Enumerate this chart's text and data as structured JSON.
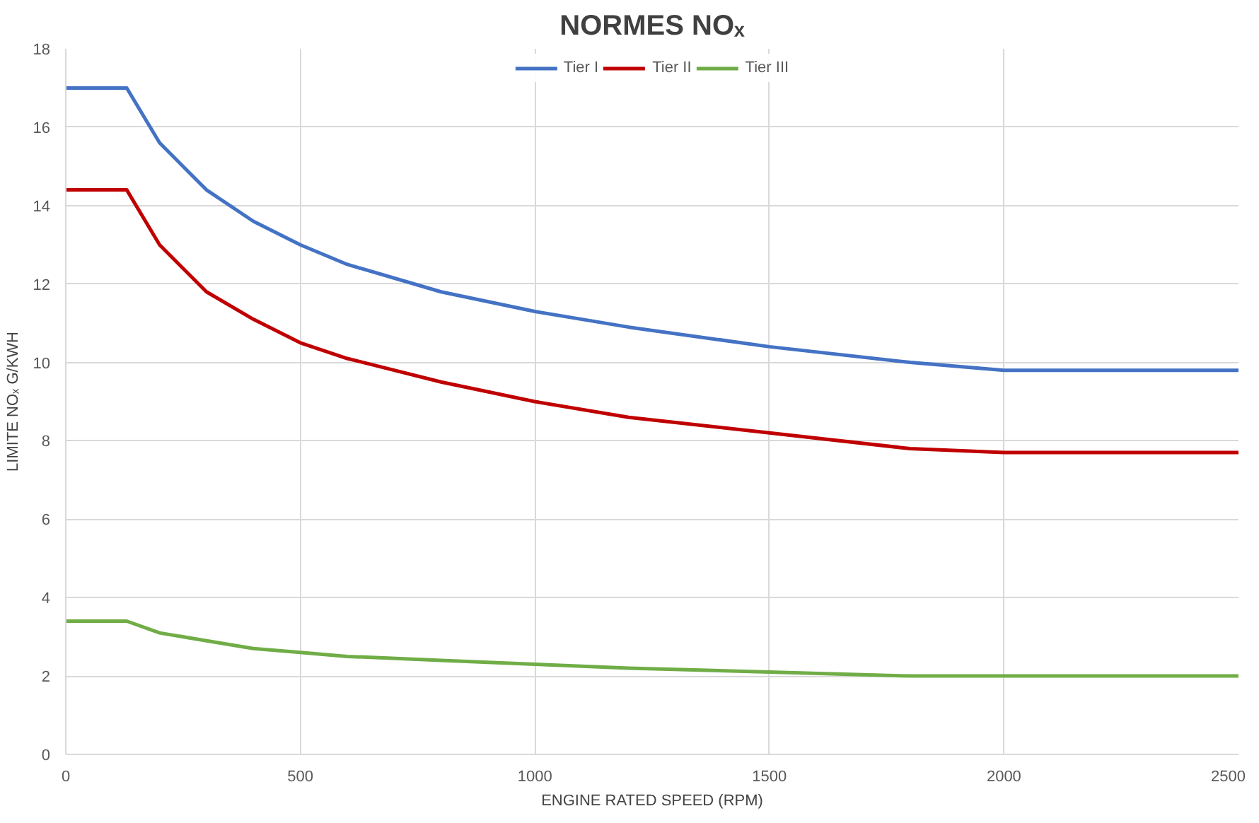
{
  "chart_data": {
    "type": "line",
    "title": "NORMES NOₓ",
    "xlabel": "ENGINE RATED SPEED (RPM)",
    "ylabel": "LIMITE NOₓ G/KWH",
    "series": [
      {
        "name": "Tier I",
        "color": "#4472c4",
        "x": [
          0,
          130,
          200,
          300,
          400,
          500,
          600,
          800,
          1000,
          1200,
          1500,
          1800,
          2000,
          2500
        ],
        "values": [
          17.0,
          17.0,
          15.6,
          14.4,
          13.6,
          13.0,
          12.5,
          11.8,
          11.3,
          10.9,
          10.4,
          10.0,
          9.8,
          9.8
        ]
      },
      {
        "name": "Tier II",
        "color": "#c00000",
        "x": [
          0,
          130,
          200,
          300,
          400,
          500,
          600,
          800,
          1000,
          1200,
          1500,
          1800,
          2000,
          2500
        ],
        "values": [
          14.4,
          14.4,
          13.0,
          11.8,
          11.1,
          10.5,
          10.1,
          9.5,
          9.0,
          8.6,
          8.2,
          7.8,
          7.7,
          7.7
        ]
      },
      {
        "name": "Tier III",
        "color": "#70ad47",
        "x": [
          0,
          130,
          200,
          300,
          400,
          500,
          600,
          800,
          1000,
          1200,
          1500,
          1800,
          2000,
          2500
        ],
        "values": [
          3.4,
          3.4,
          3.1,
          2.9,
          2.7,
          2.6,
          2.5,
          2.4,
          2.3,
          2.2,
          2.1,
          2.0,
          2.0,
          2.0
        ]
      }
    ],
    "xlim": [
      0,
      2500
    ],
    "xticks": [
      0,
      500,
      1000,
      1500,
      2000,
      2500
    ],
    "ylim": [
      0,
      18
    ],
    "yticks": [
      0,
      2,
      4,
      6,
      8,
      10,
      12,
      14,
      16,
      18
    ],
    "grid": true,
    "legend": "top",
    "marker": "none",
    "line_style": "solid"
  }
}
